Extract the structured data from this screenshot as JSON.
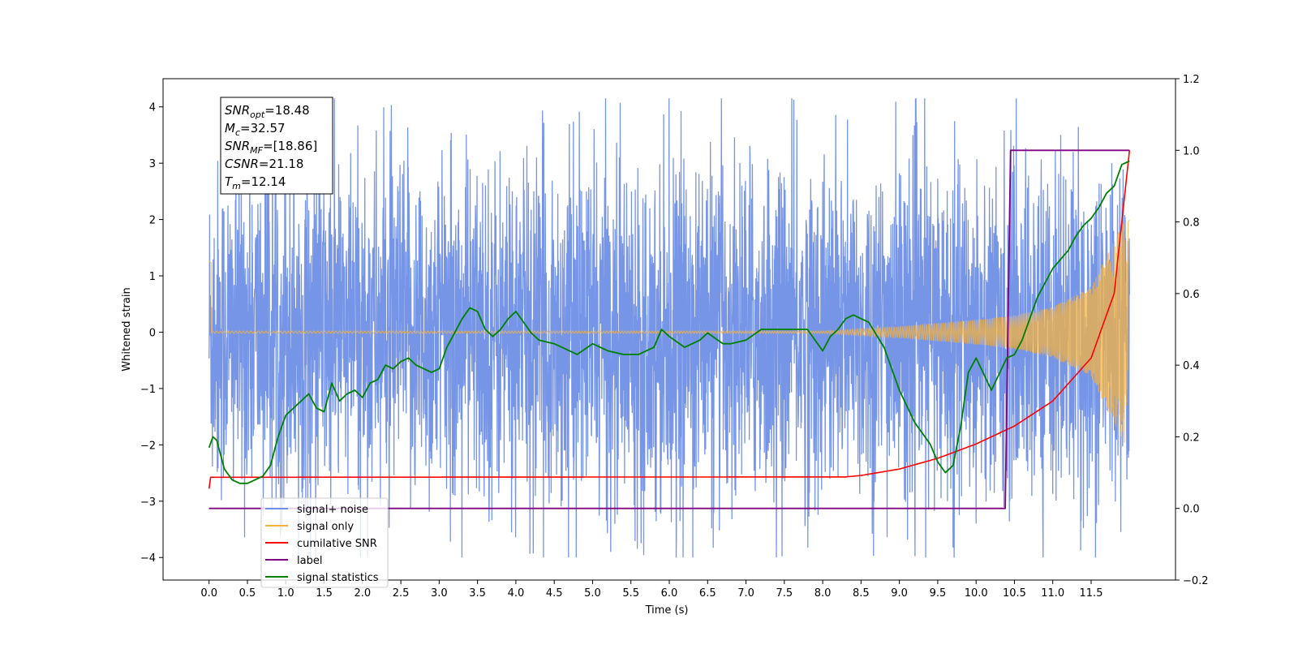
{
  "chart_data": {
    "type": "line",
    "xlabel": "Time (s)",
    "ylabel": "Whitened strain",
    "xlim": [
      -0.6,
      12.6
    ],
    "ylim": [
      -4.4,
      4.5
    ],
    "y2lim": [
      -0.2,
      1.2
    ],
    "grid": false,
    "legend_position": "lower-left",
    "x_ticks": [
      "0.0",
      "0.5",
      "1.0",
      "1.5",
      "2.0",
      "2.5",
      "3.0",
      "3.5",
      "4.0",
      "4.5",
      "5.0",
      "5.5",
      "6.0",
      "6.5",
      "7.0",
      "7.5",
      "8.0",
      "8.5",
      "9.0",
      "9.5",
      "10.0",
      "10.5",
      "11.0",
      "11.5"
    ],
    "y_ticks": [
      "4",
      "3",
      "2",
      "1",
      "0",
      "−1",
      "−2",
      "−3",
      "−4"
    ],
    "y2_ticks": [
      "1.2",
      "1.0",
      "0.8",
      "0.6",
      "0.4",
      "0.2",
      "0.0",
      "−0.2"
    ],
    "annotation": [
      {
        "main": "SNR",
        "sub": "opt",
        "rest": "=18.48"
      },
      {
        "main": "M",
        "sub": "c",
        "rest": "=32.57"
      },
      {
        "main": "SNR",
        "sub": "MF",
        "rest": "=[18.86]"
      },
      {
        "main": "CSNR",
        "sub": "",
        "rest": "=21.18"
      },
      {
        "main": "T",
        "sub": "m",
        "rest": "=12.14"
      }
    ],
    "series": [
      {
        "name": "signal+ noise",
        "color": "#6f8fe6",
        "axis": "left",
        "amplitude": 1.5,
        "x": [
          0.0,
          12.0
        ],
        "y_range": [
          -4.0,
          4.15
        ]
      },
      {
        "name": "signal only",
        "color": "#f5b342",
        "axis": "left",
        "x": [
          0.0,
          8.0,
          9.0,
          10.0,
          10.5,
          11.0,
          11.5,
          12.0
        ],
        "envelope": [
          0.02,
          0.02,
          0.1,
          0.22,
          0.3,
          0.45,
          0.8,
          2.2
        ]
      },
      {
        "name": "cumilative SNR",
        "color": "#ff0000",
        "axis": "right",
        "x": [
          0.0,
          0.02,
          8.3,
          8.5,
          9.0,
          9.5,
          10.0,
          10.5,
          11.0,
          11.5,
          11.8,
          12.0
        ],
        "y": [
          0.055,
          0.087,
          0.088,
          0.092,
          0.11,
          0.14,
          0.18,
          0.23,
          0.3,
          0.42,
          0.6,
          1.0
        ]
      },
      {
        "name": "label",
        "color": "#800080",
        "axis": "right",
        "x": [
          0.0,
          10.38,
          10.45,
          12.0
        ],
        "y": [
          0.0,
          0.0,
          1.0,
          1.0
        ]
      },
      {
        "name": "signal statistics",
        "color": "#008000",
        "axis": "right",
        "x": [
          0.0,
          0.05,
          0.1,
          0.2,
          0.3,
          0.4,
          0.5,
          0.6,
          0.7,
          0.8,
          0.9,
          1.0,
          1.1,
          1.3,
          1.4,
          1.5,
          1.6,
          1.7,
          1.8,
          1.9,
          2.0,
          2.1,
          2.2,
          2.3,
          2.4,
          2.5,
          2.6,
          2.7,
          2.8,
          2.9,
          3.0,
          3.1,
          3.2,
          3.3,
          3.4,
          3.5,
          3.6,
          3.7,
          3.8,
          3.9,
          4.0,
          4.2,
          4.3,
          4.5,
          4.6,
          4.8,
          5.0,
          5.2,
          5.4,
          5.6,
          5.8,
          5.9,
          6.0,
          6.2,
          6.4,
          6.5,
          6.7,
          6.8,
          7.0,
          7.2,
          7.4,
          7.6,
          7.8,
          8.0,
          8.1,
          8.2,
          8.3,
          8.4,
          8.6,
          8.8,
          9.0,
          9.2,
          9.4,
          9.5,
          9.6,
          9.7,
          9.8,
          9.9,
          10.0,
          10.2,
          10.4,
          10.5,
          10.6,
          10.7,
          10.8,
          11.0,
          11.2,
          11.3,
          11.4,
          11.5,
          11.6,
          11.7,
          11.8,
          11.9,
          12.0
        ],
        "y": [
          0.17,
          0.2,
          0.19,
          0.11,
          0.08,
          0.07,
          0.07,
          0.08,
          0.09,
          0.12,
          0.2,
          0.26,
          0.28,
          0.32,
          0.28,
          0.27,
          0.35,
          0.3,
          0.32,
          0.33,
          0.31,
          0.35,
          0.36,
          0.4,
          0.39,
          0.41,
          0.42,
          0.4,
          0.39,
          0.38,
          0.39,
          0.45,
          0.49,
          0.53,
          0.56,
          0.55,
          0.5,
          0.48,
          0.5,
          0.53,
          0.55,
          0.49,
          0.47,
          0.46,
          0.45,
          0.43,
          0.46,
          0.44,
          0.43,
          0.43,
          0.45,
          0.5,
          0.48,
          0.45,
          0.47,
          0.49,
          0.46,
          0.46,
          0.47,
          0.5,
          0.5,
          0.5,
          0.5,
          0.44,
          0.48,
          0.5,
          0.53,
          0.54,
          0.52,
          0.45,
          0.33,
          0.24,
          0.18,
          0.13,
          0.1,
          0.12,
          0.23,
          0.38,
          0.42,
          0.33,
          0.42,
          0.43,
          0.47,
          0.53,
          0.59,
          0.67,
          0.72,
          0.76,
          0.79,
          0.81,
          0.84,
          0.88,
          0.9,
          0.96,
          0.97
        ]
      }
    ]
  }
}
